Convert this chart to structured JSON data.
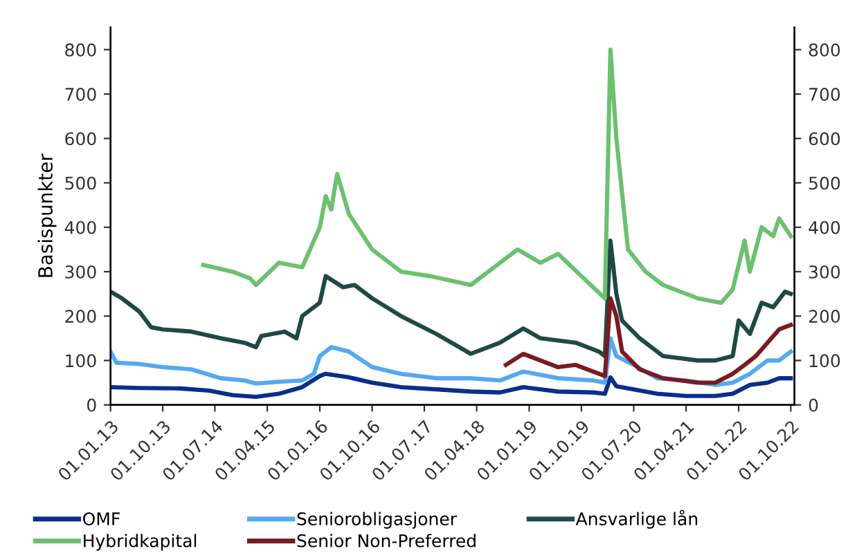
{
  "chart_data": {
    "type": "line",
    "ylabel": "Basispunkter",
    "xlim": [
      "2013-01-01",
      "2022-10-20"
    ],
    "ylim": [
      0,
      850
    ],
    "yticks": [
      0,
      100,
      200,
      300,
      400,
      500,
      600,
      700,
      800
    ],
    "y2lim": [
      0,
      850
    ],
    "y2ticks": [
      0,
      100,
      200,
      300,
      400,
      500,
      600,
      700,
      800
    ],
    "xticks": [
      {
        "value": "2013-01-01",
        "label": "01.01.13"
      },
      {
        "value": "2013-10-01",
        "label": "01.10.13"
      },
      {
        "value": "2014-07-01",
        "label": "01.07.14"
      },
      {
        "value": "2015-04-01",
        "label": "01.04.15"
      },
      {
        "value": "2016-01-01",
        "label": "01.01.16"
      },
      {
        "value": "2016-10-01",
        "label": "01.10.16"
      },
      {
        "value": "2017-07-01",
        "label": "01.07.17"
      },
      {
        "value": "2018-04-01",
        "label": "01.04.18"
      },
      {
        "value": "2019-01-01",
        "label": "01.01.19"
      },
      {
        "value": "2019-10-01",
        "label": "01.10.19"
      },
      {
        "value": "2020-07-01",
        "label": "01.07.20"
      },
      {
        "value": "2021-04-01",
        "label": "01.04.21"
      },
      {
        "value": "2022-01-01",
        "label": "01.01.22"
      },
      {
        "value": "2022-10-01",
        "label": "01.10.22"
      }
    ],
    "grid": false,
    "legend": "bottom",
    "marker": "none",
    "line_style": "solid",
    "series": [
      {
        "name": "OMF",
        "color": "#0b2d8c",
        "x": [
          "2013-01",
          "2013-06",
          "2014-01",
          "2014-06",
          "2014-10",
          "2015-02",
          "2015-06",
          "2015-10",
          "2016-01",
          "2016-02",
          "2016-06",
          "2016-10",
          "2017-03",
          "2017-09",
          "2018-03",
          "2018-08",
          "2018-12",
          "2019-06",
          "2019-12",
          "2020-02",
          "2020-03",
          "2020-04",
          "2020-07",
          "2020-11",
          "2021-04",
          "2021-09",
          "2021-12",
          "2022-03",
          "2022-06",
          "2022-08",
          "2022-10"
        ],
        "values": [
          40,
          38,
          37,
          32,
          22,
          18,
          25,
          40,
          65,
          70,
          62,
          50,
          40,
          35,
          30,
          28,
          40,
          30,
          28,
          25,
          62,
          42,
          35,
          25,
          20,
          20,
          25,
          45,
          50,
          60,
          60
        ]
      },
      {
        "name": "Seniorobligasjoner",
        "color": "#55a8f2",
        "x": [
          "2013-01",
          "2013-02",
          "2013-06",
          "2013-10",
          "2014-03",
          "2014-08",
          "2014-12",
          "2015-02",
          "2015-06",
          "2015-10",
          "2015-12",
          "2016-01",
          "2016-03",
          "2016-06",
          "2016-10",
          "2017-03",
          "2017-09",
          "2018-03",
          "2018-08",
          "2018-12",
          "2019-06",
          "2019-12",
          "2020-02",
          "2020-03",
          "2020-04",
          "2020-07",
          "2020-11",
          "2021-04",
          "2021-09",
          "2021-12",
          "2022-03",
          "2022-06",
          "2022-08",
          "2022-10"
        ],
        "values": [
          120,
          95,
          92,
          85,
          80,
          60,
          55,
          48,
          52,
          55,
          70,
          110,
          130,
          120,
          85,
          70,
          60,
          60,
          55,
          75,
          60,
          55,
          50,
          150,
          110,
          90,
          60,
          55,
          45,
          50,
          70,
          100,
          100,
          120
        ]
      },
      {
        "name": "Ansvarlige lån",
        "color": "#1f4a44",
        "x": [
          "2013-01",
          "2013-03",
          "2013-06",
          "2013-08",
          "2013-10",
          "2014-03",
          "2014-08",
          "2014-12",
          "2015-02",
          "2015-03",
          "2015-07",
          "2015-09",
          "2015-10",
          "2016-01",
          "2016-02",
          "2016-05",
          "2016-07",
          "2016-10",
          "2017-03",
          "2017-09",
          "2018-03",
          "2018-08",
          "2018-12",
          "2019-03",
          "2019-09",
          "2020-01",
          "2020-02",
          "2020-03",
          "2020-04",
          "2020-05",
          "2020-08",
          "2020-12",
          "2021-06",
          "2021-09",
          "2021-12",
          "2022-01",
          "2022-03",
          "2022-05",
          "2022-07",
          "2022-09",
          "2022-10"
        ],
        "values": [
          255,
          240,
          210,
          175,
          170,
          165,
          150,
          140,
          130,
          155,
          165,
          150,
          200,
          230,
          290,
          265,
          270,
          240,
          200,
          160,
          115,
          140,
          172,
          150,
          140,
          120,
          110,
          370,
          250,
          190,
          150,
          110,
          100,
          100,
          110,
          190,
          160,
          230,
          220,
          255,
          250
        ]
      },
      {
        "name": "Hybridkapital",
        "color": "#6cc070",
        "x": [
          "2014-05",
          "2014-10",
          "2015-01",
          "2015-02",
          "2015-06",
          "2015-10",
          "2015-11",
          "2016-01",
          "2016-02",
          "2016-03",
          "2016-04",
          "2016-06",
          "2016-10",
          "2017-03",
          "2017-08",
          "2018-03",
          "2018-08",
          "2018-11",
          "2019-03",
          "2019-06",
          "2019-10",
          "2020-02",
          "2020-03",
          "2020-04",
          "2020-06",
          "2020-09",
          "2020-12",
          "2021-06",
          "2021-10",
          "2021-12",
          "2022-02",
          "2022-03",
          "2022-05",
          "2022-07",
          "2022-08",
          "2022-10"
        ],
        "values": [
          315,
          300,
          285,
          270,
          320,
          310,
          340,
          400,
          470,
          440,
          520,
          430,
          350,
          300,
          290,
          270,
          320,
          350,
          320,
          340,
          290,
          240,
          800,
          600,
          350,
          300,
          270,
          240,
          230,
          260,
          370,
          300,
          400,
          380,
          420,
          380
        ]
      },
      {
        "name": "Senior Non-Preferred",
        "color": "#7b1a22",
        "x": [
          "2018-09",
          "2018-12",
          "2019-03",
          "2019-06",
          "2019-09",
          "2020-01",
          "2020-02",
          "2020-03",
          "2020-04",
          "2020-05",
          "2020-08",
          "2020-12",
          "2021-06",
          "2021-09",
          "2021-12",
          "2022-02",
          "2022-04",
          "2022-06",
          "2022-08",
          "2022-10"
        ],
        "values": [
          90,
          115,
          100,
          85,
          90,
          70,
          65,
          240,
          200,
          120,
          80,
          60,
          50,
          50,
          70,
          90,
          110,
          140,
          170,
          180
        ]
      }
    ]
  }
}
